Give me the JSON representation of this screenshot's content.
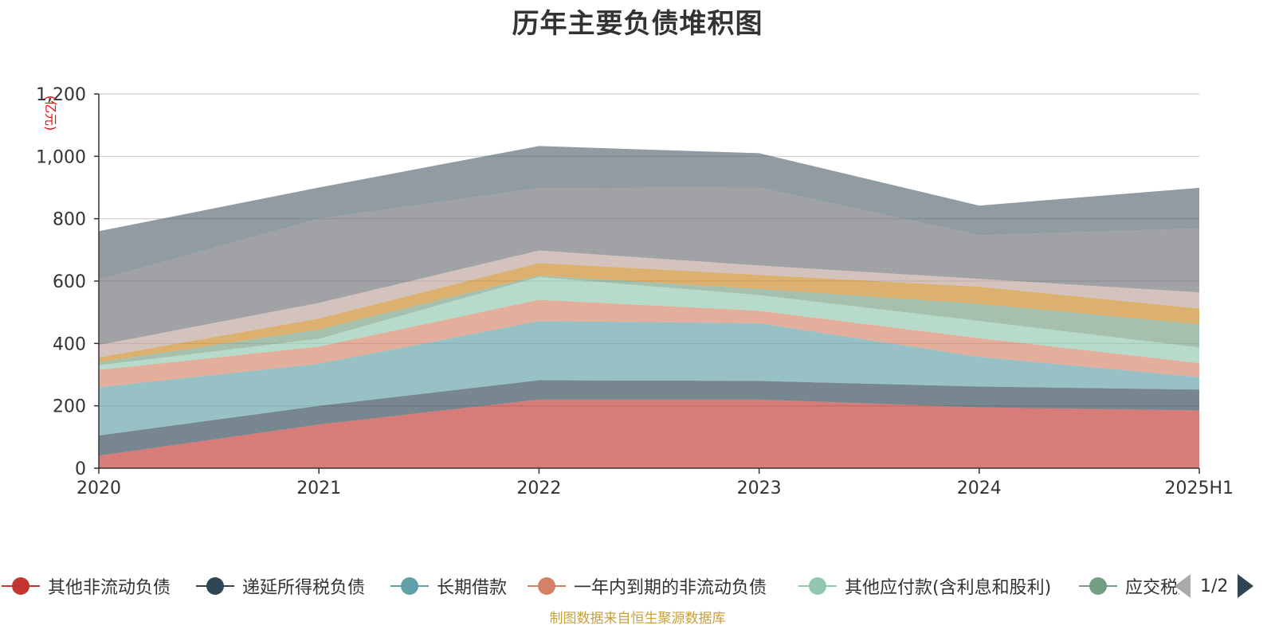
{
  "chart_data": {
    "type": "area",
    "stacked": true,
    "title": "历年主要负债堆积图",
    "ylabel": "(亿元)",
    "categories": [
      "2020",
      "2021",
      "2022",
      "2023",
      "2024",
      "2025H1"
    ],
    "ylim": [
      0,
      1200
    ],
    "yticks": [
      "0",
      "200",
      "400",
      "600",
      "800",
      "1,000",
      "1,200"
    ],
    "grid": true,
    "series": [
      {
        "name": "其他非流动负债",
        "color": "#c23531",
        "values": [
          40,
          140,
          220,
          220,
          195,
          185
        ]
      },
      {
        "name": "递延所得税负债",
        "color": "#2f4554",
        "values": [
          65,
          60,
          62,
          60,
          67,
          67
        ]
      },
      {
        "name": "长期借款",
        "color": "#61a0a8",
        "values": [
          155,
          135,
          190,
          185,
          95,
          40
        ]
      },
      {
        "name": "一年内到期的非流动负债",
        "color": "#d48265",
        "values": [
          55,
          55,
          68,
          40,
          60,
          45
        ]
      },
      {
        "name": "其他应付款(含利息和股利)",
        "color": "#91c7ae",
        "values": [
          15,
          25,
          73,
          50,
          55,
          50
        ]
      },
      {
        "name": "应交税费",
        "color": "#749f83",
        "values": [
          10,
          30,
          5,
          20,
          55,
          75
        ]
      },
      {
        "name": "",
        "color": "#ca8622",
        "values": [
          15,
          35,
          40,
          45,
          55,
          50
        ]
      },
      {
        "name": "",
        "color": "#bda29a",
        "values": [
          40,
          50,
          40,
          30,
          25,
          52
        ]
      },
      {
        "name": "",
        "color": "#6e7074",
        "values": [
          210,
          270,
          200,
          250,
          140,
          205
        ]
      },
      {
        "name": "",
        "color": "#546570",
        "values": [
          155,
          100,
          135,
          110,
          95,
          130
        ]
      }
    ]
  },
  "legend": {
    "page": "1/2",
    "visible_items": [
      "其他非流动负债",
      "递延所得税负债",
      "长期借款",
      "一年内到期的非流动负债",
      "其他应付款(含利息和股利)",
      "应交税费"
    ],
    "prev_icon": "triangle-left-icon",
    "next_icon": "triangle-right-icon"
  },
  "footer": {
    "source_note": "制图数据来自恒生聚源数据库"
  }
}
